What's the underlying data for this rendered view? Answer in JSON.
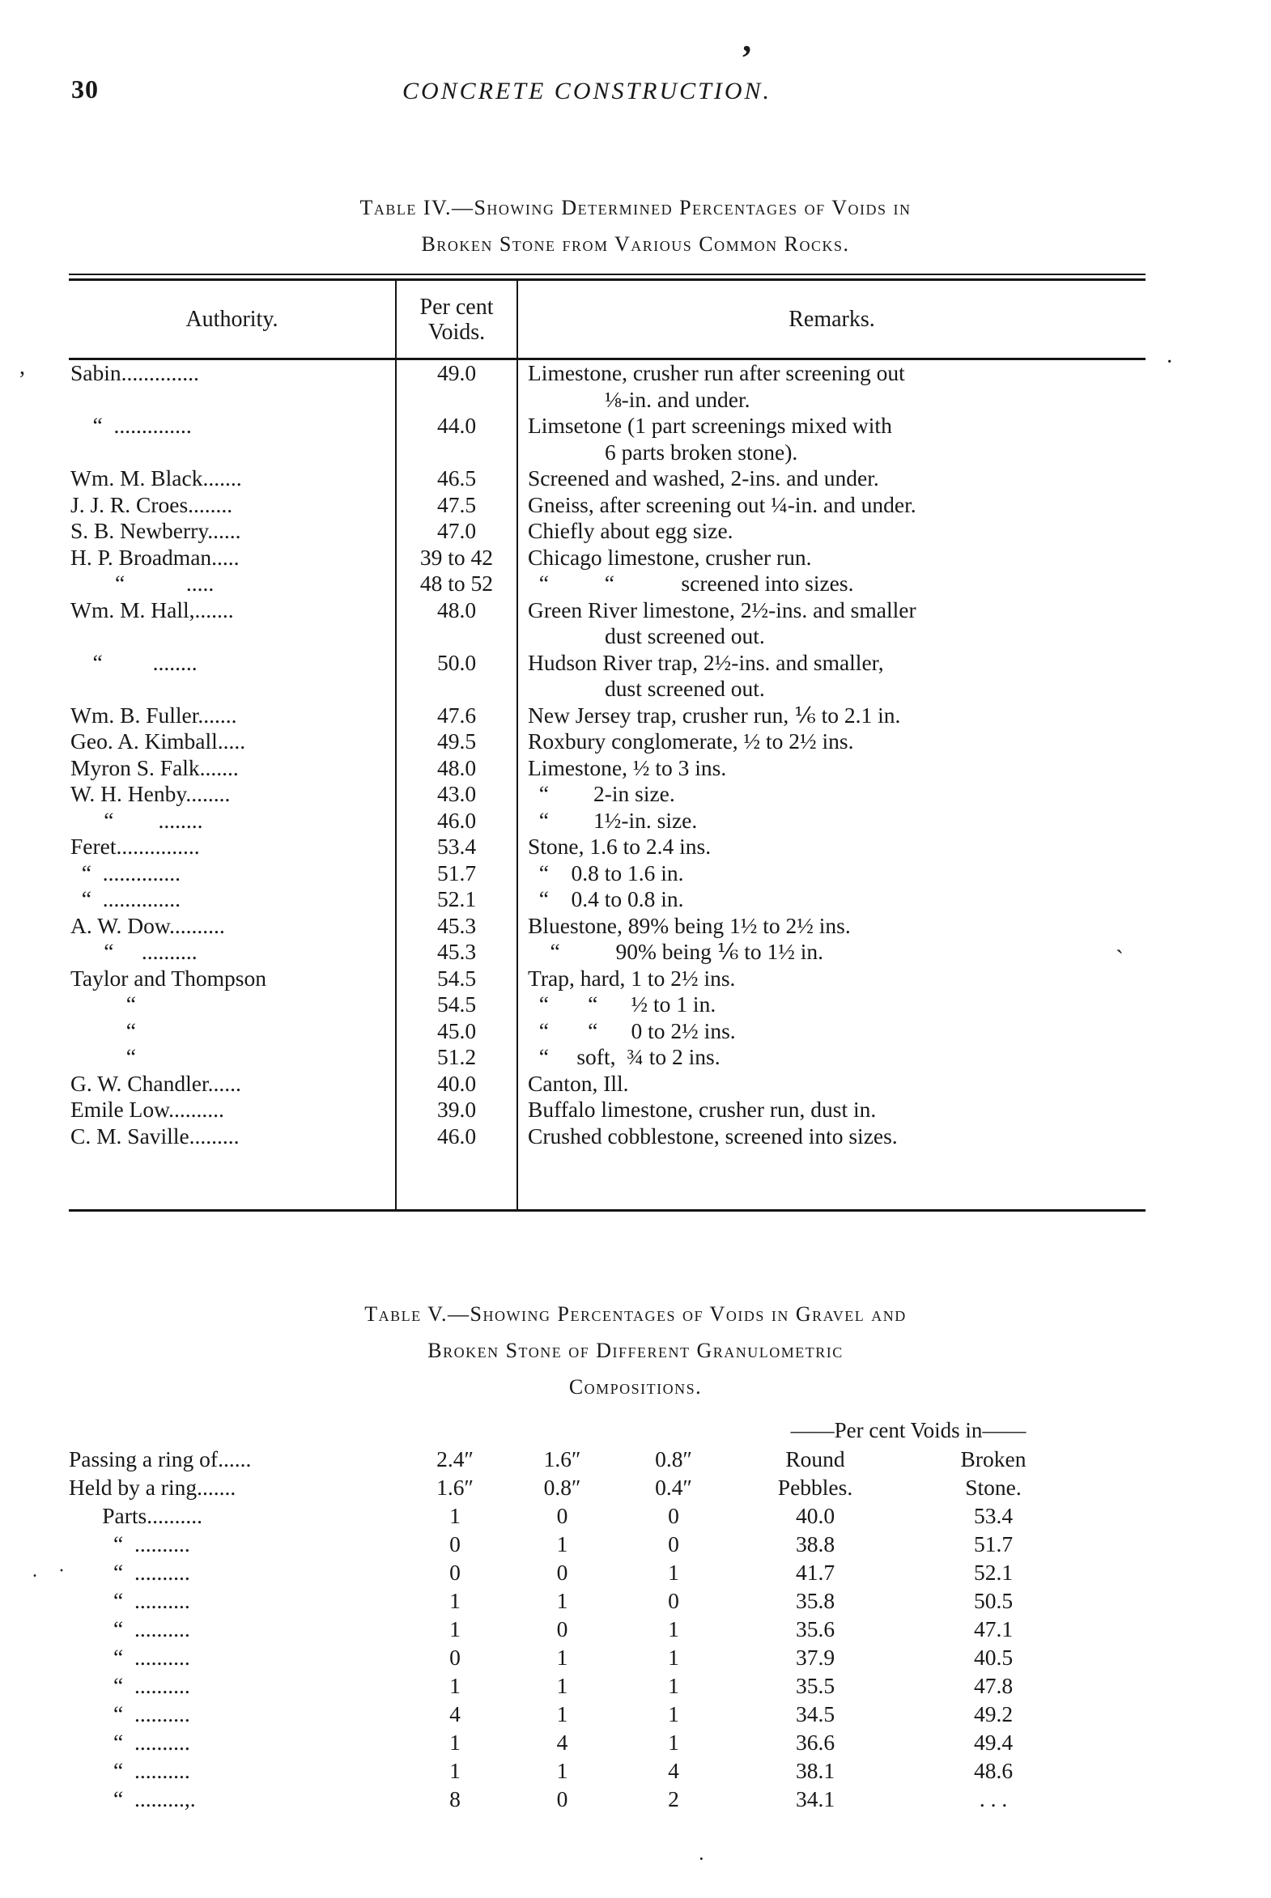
{
  "page": {
    "number": "30",
    "running_title": "CONCRETE CONSTRUCTION."
  },
  "artifacts": [
    "’",
    "·",
    "`",
    ",",
    "·",
    ". ·"
  ],
  "table4": {
    "caption": [
      "Table IV.—Showing Determined Percentages of Voids in",
      "Broken Stone from Various Common Rocks."
    ],
    "headers": {
      "authority": "Authority.",
      "voids": "Per cent\nVoids.",
      "remarks": "Remarks."
    },
    "rows": [
      {
        "authority": "Sabin..............",
        "voids": "49.0",
        "remarks": "Limestone, crusher run after screening out\n⅛-in. and under."
      },
      {
        "authority": "    “  ..............",
        "voids": "44.0",
        "remarks": "Limsetone (1 part screenings mixed with\n6 parts broken stone)."
      },
      {
        "authority": "Wm. M. Black.......",
        "voids": "46.5",
        "remarks": "Screened and washed, 2-ins. and under."
      },
      {
        "authority": "J. J. R. Croes........",
        "voids": "47.5",
        "remarks": "Gneiss, after screening out ¼-in. and under."
      },
      {
        "authority": "S. B. Newberry......",
        "voids": "47.0",
        "remarks": "Chiefly about egg size."
      },
      {
        "authority": "H. P. Broadman.....",
        "voids": "39 to 42",
        "remarks": "Chicago limestone, crusher run."
      },
      {
        "authority": "        “           .....",
        "voids": "48 to 52",
        "remarks": "  “          “            screened into sizes."
      },
      {
        "authority": "Wm. M. Hall,.......",
        "voids": "48.0",
        "remarks": "Green River limestone, 2½-ins. and smaller\ndust screened out."
      },
      {
        "authority": "    “         ........",
        "voids": "50.0",
        "remarks": "Hudson River trap, 2½-ins. and smaller,\ndust screened out."
      },
      {
        "authority": "Wm. B. Fuller.......",
        "voids": "47.6",
        "remarks": "New Jersey trap, crusher run, ⅙ to 2.1 in."
      },
      {
        "authority": "Geo. A. Kimball.....",
        "voids": "49.5",
        "remarks": "Roxbury conglomerate, ½ to 2½ ins."
      },
      {
        "authority": "Myron S. Falk.......",
        "voids": "48.0",
        "remarks": "Limestone, ½ to 3 ins."
      },
      {
        "authority": "W. H. Henby........",
        "voids": "43.0",
        "remarks": "  “        2-in size."
      },
      {
        "authority": "      “        ........",
        "voids": "46.0",
        "remarks": "  “        1½-in. size."
      },
      {
        "authority": "Feret...............",
        "voids": "53.4",
        "remarks": "Stone, 1.6 to 2.4 ins."
      },
      {
        "authority": "  “  ..............",
        "voids": "51.7",
        "remarks": "  “    0.8 to 1.6 in."
      },
      {
        "authority": "  “  ..............",
        "voids": "52.1",
        "remarks": "  “    0.4 to 0.8 in."
      },
      {
        "authority": "A. W. Dow..........",
        "voids": "45.3",
        "remarks": "Bluestone, 89% being 1½ to 2½ ins."
      },
      {
        "authority": "      “     ..........",
        "voids": "45.3",
        "remarks": "    “          90% being ⅙ to 1½ in."
      },
      {
        "authority": "Taylor and Thompson",
        "voids": "54.5",
        "remarks": "Trap, hard, 1 to 2½ ins."
      },
      {
        "authority": "          “",
        "voids": "54.5",
        "remarks": "  “       “      ½ to 1 in."
      },
      {
        "authority": "          “",
        "voids": "45.0",
        "remarks": "  “       “      0 to 2½ ins."
      },
      {
        "authority": "          “",
        "voids": "51.2",
        "remarks": "  “     soft,  ¾ to 2 ins."
      },
      {
        "authority": "G. W. Chandler......",
        "voids": "40.0",
        "remarks": "Canton, Ill."
      },
      {
        "authority": "Emile Low..........",
        "voids": "39.0",
        "remarks": "Buffalo limestone, crusher run, dust in."
      },
      {
        "authority": "C. M. Saville.........",
        "voids": "46.0",
        "remarks": "Crushed cobblestone, screened into sizes."
      }
    ]
  },
  "table5": {
    "caption": [
      "Table V.—Showing Percentages of Voids in Gravel and",
      "Broken Stone of Different Granulometric",
      "Compositions."
    ],
    "span_header": "——Per cent Voids in——",
    "header_rows": [
      {
        "label": "Passing a ring of......",
        "c1": "2.4″",
        "c2": "1.6″",
        "c3": "0.8″",
        "c4": "Round",
        "c5": "Broken"
      },
      {
        "label": "Held by a ring.......",
        "c1": "1.6″",
        "c2": "0.8″",
        "c3": "0.4″",
        "c4": "Pebbles.",
        "c5": "Stone."
      }
    ],
    "rows": [
      {
        "label": "      Parts..........",
        "c1": "1",
        "c2": "0",
        "c3": "0",
        "c4": "40.0",
        "c5": "53.4"
      },
      {
        "label": "        “  ..........",
        "c1": "0",
        "c2": "1",
        "c3": "0",
        "c4": "38.8",
        "c5": "51.7"
      },
      {
        "label": "        “  ..........",
        "c1": "0",
        "c2": "0",
        "c3": "1",
        "c4": "41.7",
        "c5": "52.1"
      },
      {
        "label": "        “  ..........",
        "c1": "1",
        "c2": "1",
        "c3": "0",
        "c4": "35.8",
        "c5": "50.5"
      },
      {
        "label": "        “  ..........",
        "c1": "1",
        "c2": "0",
        "c3": "1",
        "c4": "35.6",
        "c5": "47.1"
      },
      {
        "label": "        “  ..........",
        "c1": "0",
        "c2": "1",
        "c3": "1",
        "c4": "37.9",
        "c5": "40.5"
      },
      {
        "label": "        “  ..........",
        "c1": "1",
        "c2": "1",
        "c3": "1",
        "c4": "35.5",
        "c5": "47.8"
      },
      {
        "label": "        “  ..........",
        "c1": "4",
        "c2": "1",
        "c3": "1",
        "c4": "34.5",
        "c5": "49.2"
      },
      {
        "label": "        “  ..........",
        "c1": "1",
        "c2": "4",
        "c3": "1",
        "c4": "36.6",
        "c5": "49.4"
      },
      {
        "label": "        “  ..........",
        "c1": "1",
        "c2": "1",
        "c3": "4",
        "c4": "38.1",
        "c5": "48.6"
      },
      {
        "label": "        “  .........,.",
        "c1": "8",
        "c2": "0",
        "c3": "2",
        "c4": "34.1",
        "c5": ". . ."
      }
    ]
  }
}
